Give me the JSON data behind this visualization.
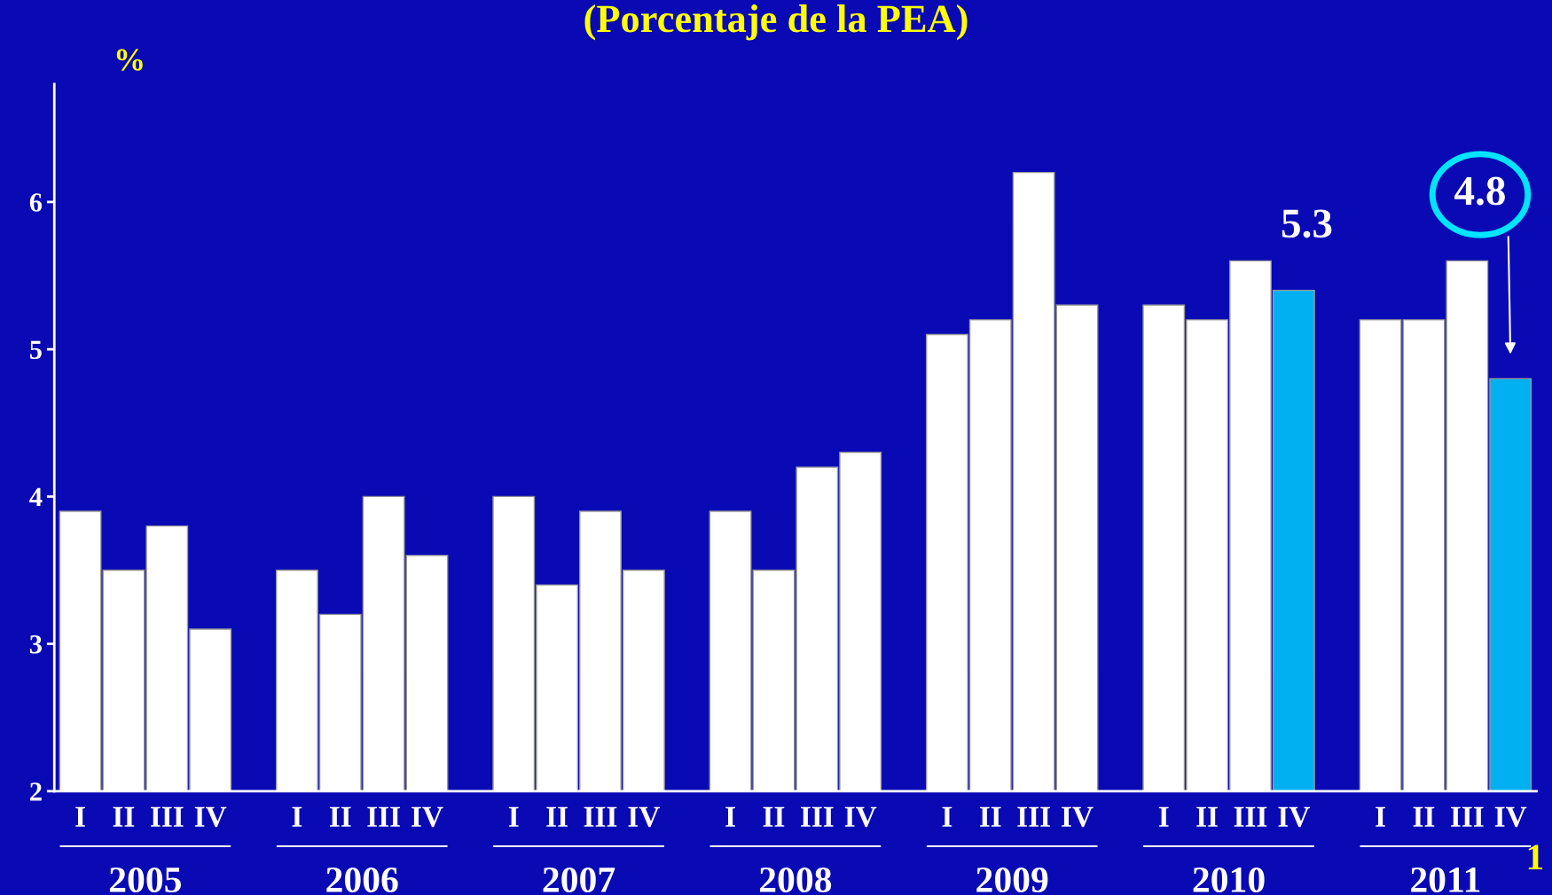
{
  "chart_data": {
    "type": "bar",
    "title": "(Porcentaje de la PEA)",
    "ylabel": "%",
    "categories": [
      "I",
      "II",
      "III",
      "IV",
      null,
      "I",
      "II",
      "III",
      "IV",
      null,
      "I",
      "II",
      "III",
      "IV",
      null,
      "I",
      "II",
      "III",
      "IV",
      null,
      "I",
      "II",
      "III",
      "IV",
      null,
      "I",
      "II",
      "III",
      "IV",
      null,
      "I",
      "II",
      "III",
      "IV"
    ],
    "values": [
      3.9,
      3.5,
      3.8,
      3.1,
      null,
      3.5,
      3.2,
      4.0,
      3.6,
      null,
      4.0,
      3.4,
      3.9,
      3.5,
      null,
      3.9,
      3.5,
      4.2,
      4.3,
      null,
      5.1,
      5.2,
      6.2,
      5.3,
      null,
      5.3,
      5.2,
      5.6,
      5.4,
      null,
      5.2,
      5.2,
      5.6,
      4.8
    ],
    "colors": [
      "#ffffff",
      "#ffffff",
      "#ffffff",
      "#ffffff",
      null,
      "#ffffff",
      "#ffffff",
      "#ffffff",
      "#ffffff",
      null,
      "#ffffff",
      "#ffffff",
      "#ffffff",
      "#ffffff",
      null,
      "#ffffff",
      "#ffffff",
      "#ffffff",
      "#ffffff",
      null,
      "#ffffff",
      "#ffffff",
      "#ffffff",
      "#ffffff",
      null,
      "#ffffff",
      "#ffffff",
      "#ffffff",
      "#00b0f0",
      null,
      "#ffffff",
      "#ffffff",
      "#ffffff",
      "#00b0f0"
    ],
    "ylim": [
      2,
      6.8
    ],
    "yticks": [
      2,
      3,
      4,
      5,
      6
    ],
    "grid": false,
    "legend": false,
    "annotations": [
      "2005",
      "2006",
      "2007",
      "2008",
      "2009",
      "2010",
      "2011",
      "5.3",
      "4.8",
      "1"
    ]
  }
}
